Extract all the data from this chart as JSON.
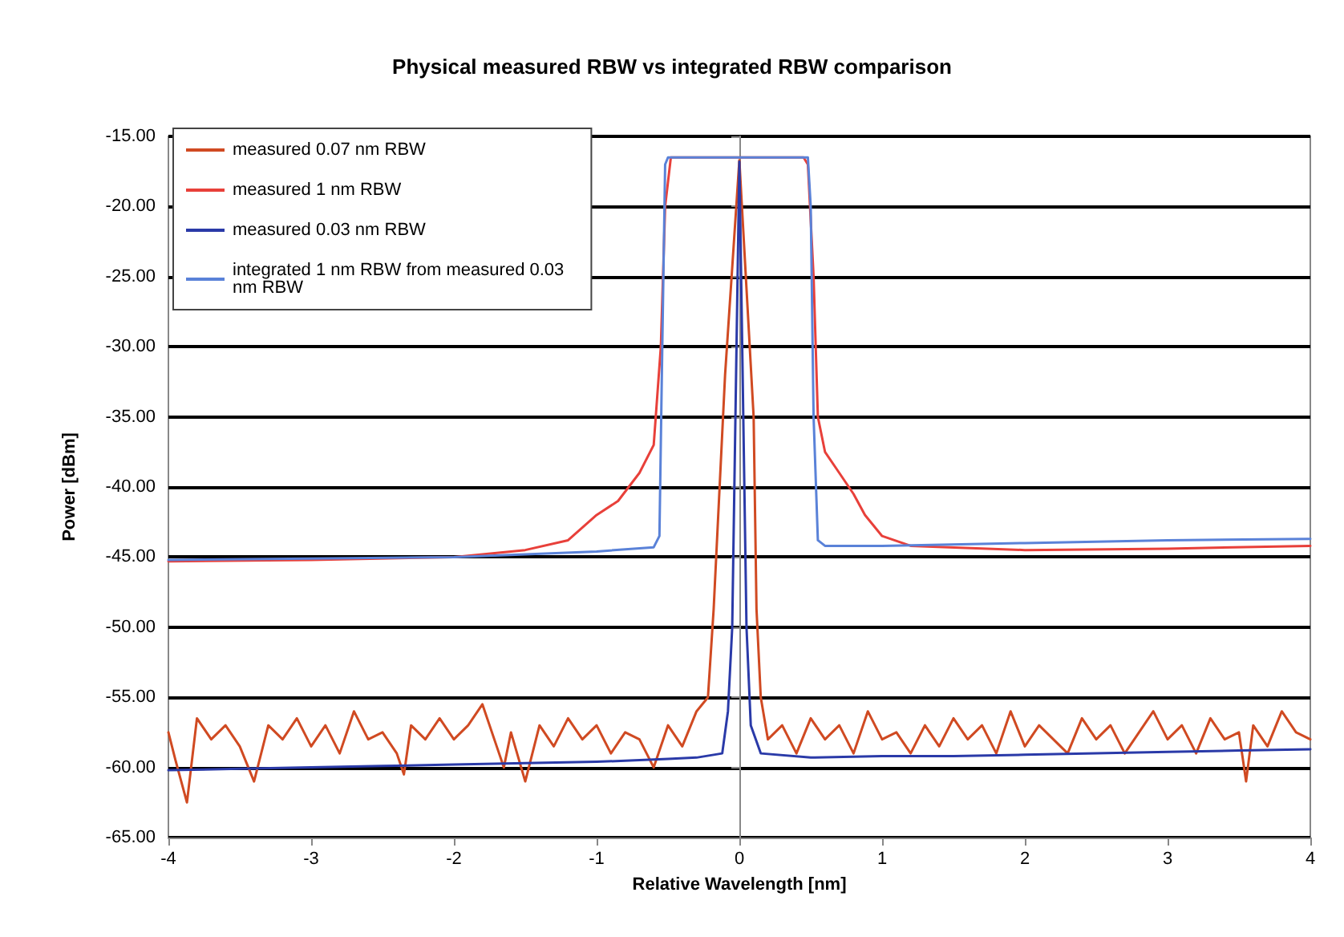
{
  "chart_data": {
    "type": "line",
    "title": "Physical measured RBW vs integrated RBW comparison",
    "xlabel": "Relative Wavelength [nm]",
    "ylabel": "Power [dBm]",
    "xlim": [
      -4,
      4
    ],
    "xticks": [
      -4,
      -3,
      -2,
      -1,
      0,
      1,
      2,
      3,
      4
    ],
    "ylim": [
      -65,
      -15
    ],
    "yticks": [
      {
        "value": -65,
        "label": "-65.00"
      },
      {
        "value": -60,
        "label": "-60.00"
      },
      {
        "value": -55,
        "label": "-55.00"
      },
      {
        "value": -50,
        "label": "-50.00"
      },
      {
        "value": -45,
        "label": "-45.00"
      },
      {
        "value": -40,
        "label": "-40.00"
      },
      {
        "value": -35,
        "label": "-35.00"
      },
      {
        "value": -30,
        "label": "-30.00"
      },
      {
        "value": -25,
        "label": "-25.00"
      },
      {
        "value": -20,
        "label": "-20.00"
      },
      {
        "value": -15,
        "label": "-15.00"
      }
    ],
    "grid": "y",
    "legend": "top left",
    "marker": "none",
    "line_style": "solid",
    "series": [
      {
        "name": "measured 0.07 nm RBW",
        "color": "#d04a22",
        "x": [
          -4,
          -3.95,
          -3.87,
          -3.8,
          -3.7,
          -3.6,
          -3.5,
          -3.4,
          -3.3,
          -3.2,
          -3.1,
          -3,
          -2.9,
          -2.8,
          -2.7,
          -2.6,
          -2.5,
          -2.4,
          -2.35,
          -2.3,
          -2.2,
          -2.1,
          -2,
          -1.9,
          -1.8,
          -1.7,
          -1.65,
          -1.6,
          -1.5,
          -1.4,
          -1.3,
          -1.2,
          -1.1,
          -1,
          -0.9,
          -0.8,
          -0.7,
          -0.6,
          -0.5,
          -0.4,
          -0.3,
          -0.22,
          -0.18,
          -0.1,
          0,
          0.1,
          0.12,
          0.15,
          0.2,
          0.3,
          0.4,
          0.5,
          0.6,
          0.7,
          0.8,
          0.9,
          1,
          1.1,
          1.2,
          1.3,
          1.4,
          1.5,
          1.6,
          1.7,
          1.8,
          1.9,
          2,
          2.1,
          2.2,
          2.3,
          2.4,
          2.5,
          2.6,
          2.7,
          2.8,
          2.9,
          3,
          3.1,
          3.2,
          3.3,
          3.4,
          3.5,
          3.55,
          3.6,
          3.7,
          3.8,
          3.9,
          4
        ],
        "values": [
          -57.5,
          -59.5,
          -62.5,
          -56.5,
          -58,
          -57,
          -58.5,
          -61,
          -57,
          -58,
          -56.5,
          -58.5,
          -57,
          -59,
          -56,
          -58,
          -57.5,
          -59,
          -60.5,
          -57,
          -58,
          -56.5,
          -58,
          -57,
          -55.5,
          -58.5,
          -60,
          -57.5,
          -61,
          -57,
          -58.5,
          -56.5,
          -58,
          -57,
          -59,
          -57.5,
          -58,
          -60,
          -57,
          -58.5,
          -56,
          -55,
          -48.7,
          -32,
          -16.7,
          -35,
          -48.7,
          -55,
          -58,
          -57,
          -59,
          -56.5,
          -58,
          -57,
          -59,
          -56,
          -58,
          -57.5,
          -59,
          -57,
          -58.5,
          -56.5,
          -58,
          -57,
          -59,
          -56,
          -58.5,
          -57,
          -58,
          -59,
          -56.5,
          -58,
          -57,
          -59,
          -57.5,
          -56,
          -58,
          -57,
          -59,
          -56.5,
          -58,
          -57.5,
          -61,
          -57,
          -58.5,
          -56,
          -57.5,
          -58
        ]
      },
      {
        "name": "measured 1 nm RBW",
        "color": "#e8403a",
        "x": [
          -4,
          -3,
          -2,
          -1.5,
          -1.2,
          -1,
          -0.85,
          -0.7,
          -0.6,
          -0.55,
          -0.52,
          -0.48,
          0,
          0.45,
          0.48,
          0.52,
          0.55,
          0.6,
          0.7,
          0.8,
          0.88,
          1,
          1.2,
          2,
          3,
          4
        ],
        "values": [
          -45.3,
          -45.2,
          -45,
          -44.5,
          -43.8,
          -42,
          -41,
          -39,
          -37,
          -30,
          -20,
          -16.5,
          -16.5,
          -16.5,
          -17,
          -25,
          -35,
          -37.5,
          -39,
          -40.5,
          -42,
          -43.5,
          -44.2,
          -44.5,
          -44.4,
          -44.2
        ]
      },
      {
        "name": "measured 0.03 nm RBW",
        "color": "#2a3aa8",
        "x": [
          -4,
          -3.5,
          -3,
          -2.5,
          -2,
          -1.5,
          -1,
          -0.5,
          -0.3,
          -0.12,
          -0.08,
          -0.05,
          -0.02,
          0,
          0.02,
          0.05,
          0.08,
          0.15,
          0.5,
          1,
          1.5,
          2,
          2.5,
          3,
          3.5,
          4
        ],
        "values": [
          -60.2,
          -60.1,
          -60,
          -59.9,
          -59.8,
          -59.7,
          -59.6,
          -59.4,
          -59.3,
          -59,
          -56,
          -50,
          -30,
          -16.8,
          -30,
          -50,
          -57,
          -59,
          -59.3,
          -59.2,
          -59.2,
          -59.1,
          -59,
          -58.9,
          -58.8,
          -58.7
        ]
      },
      {
        "name": "integrated 1 nm RBW from measured 0.03 nm RBW",
        "color": "#5a82d8",
        "x": [
          -4,
          -3,
          -2,
          -1,
          -0.6,
          -0.56,
          -0.54,
          -0.52,
          -0.5,
          0,
          0.48,
          0.5,
          0.52,
          0.55,
          0.6,
          1,
          2,
          3,
          4
        ],
        "values": [
          -45.2,
          -45.1,
          -45,
          -44.6,
          -44.3,
          -43.5,
          -30,
          -17,
          -16.5,
          -16.5,
          -16.5,
          -20,
          -35,
          -43.8,
          -44.2,
          -44.2,
          -44,
          -43.8,
          -43.7
        ]
      }
    ]
  }
}
